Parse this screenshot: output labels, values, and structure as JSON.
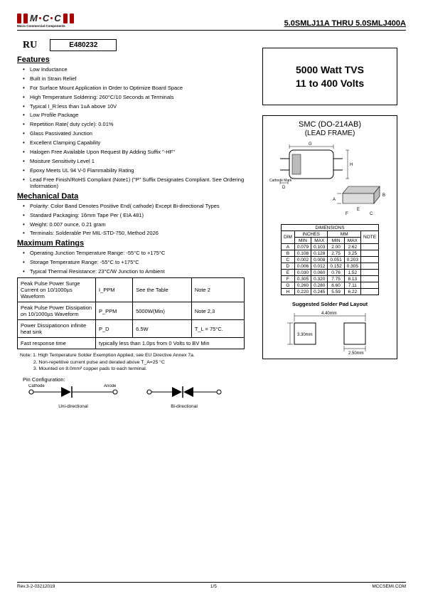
{
  "header": {
    "logo_sub": "Micro Commercial Components",
    "title": "5.0SMLJ11A THRU 5.0SMLJ400A"
  },
  "cert": {
    "ul_mark": "RU",
    "code": "E480232"
  },
  "sections": {
    "features_title": "Features",
    "mechanical_title": "Mechanical Data",
    "maxratings_title": "Maximum Ratings"
  },
  "features": [
    "Low Inductance",
    "Built in Strain Relief",
    "For Surface Mount Application in Order to Optimize Board Space",
    "High Temperature Soldering: 260°C/10 Seconds at Terminals",
    "Typical I_R:less than 1uA above 10V",
    "Low Profile Package",
    "Repetition Rate( duty cycle): 0.01%",
    "Glass Passivated Junction",
    "Excellent Clamping Capability",
    "Halogen Free Available Upon Request By Adding Suffix \"-HF\"",
    "Moisture Sensitivity Level 1",
    "Epoxy Meets UL 94 V-0 Flammability Rating",
    "Lead Free Finish/RoHS Compliant  (Note1) (\"P\" Suffix Designates Compliant. See Ordering Information)"
  ],
  "mechanical": [
    "Polarity: Color Band Denotes Positive End( cathode) Except Bi-directional Types",
    "Standard Packaging: 16mm Tape Per ( EIA 481)",
    "Weight: 0.007 ounce, 0.21 gram",
    "Terminals: Solderable Per MIL-STD-750, Method 2026"
  ],
  "maxratings": [
    "Operating Junction Temperature Range: -55°C to +175°C",
    "Storage Temperature Range: -55°C to +175°C",
    "Typical Thermal Resistance: 23°C/W Junction to Ambient"
  ],
  "ratings_table": {
    "rows": [
      {
        "p": "Peak Pulse Power Surge Current on 10/1000µs  Waveform",
        "s": "I_PPM",
        "v": "See the Table",
        "n": "Note 2"
      },
      {
        "p": "Peak Pulse Power Dissipation on 10/1000µs Waveform",
        "s": "P_PPM",
        "v": "5000W(Min)",
        "n": "Note 2,3"
      },
      {
        "p": "Power Dissipationon infinite heat sink",
        "s": "P_D",
        "v": "6.5W",
        "n": "T_L = 75°C."
      },
      {
        "p": "Fast response time",
        "s": "",
        "v": "typically less than 1.0ps from 0 Volts to BV Min",
        "n": ""
      }
    ]
  },
  "notes": {
    "label": "Note:",
    "lines": [
      "1. High Temperature Solder Exemption Applied, see EU Directive Annex 7a.",
      "2. Non-repetitive current pulse and derated above T_A=25 °C",
      "3. Mounted on 8.0mm² copper pads to each terminal."
    ]
  },
  "pin": {
    "title": "Pin Configuration:",
    "cathode": "Cathode",
    "anode": "Anode",
    "uni": "Uni-directional",
    "bi": "Bi-directional"
  },
  "topbox": {
    "l1": "5000 Watt TVS",
    "l2": "11 to 400 Volts"
  },
  "pkg": {
    "title": "SMC (DO-214AB)",
    "sub": "(LEAD FRAME)",
    "cathode_mark": "Cathode Mark"
  },
  "dim": {
    "header": "DIMENSIONS",
    "dim_label": "DIM",
    "inches": "INCHES",
    "mm": "MM",
    "note": "NOTE",
    "min": "MIN",
    "max": "MAX",
    "rows": [
      {
        "d": "A",
        "imin": "0.079",
        "imax": "0.103",
        "mmin": "2.00",
        "mmax": "2.62",
        "n": ""
      },
      {
        "d": "B",
        "imin": "0.108",
        "imax": "0.128",
        "mmin": "2.75",
        "mmax": "3.25",
        "n": ""
      },
      {
        "d": "C",
        "imin": "0.002",
        "imax": "0.008",
        "mmin": "0.051",
        "mmax": "0.203",
        "n": ""
      },
      {
        "d": "D",
        "imin": "0.006",
        "imax": "0.012",
        "mmin": "0.152",
        "mmax": "0.305",
        "n": ""
      },
      {
        "d": "E",
        "imin": "0.030",
        "imax": "0.060",
        "mmin": "0.76",
        "mmax": "1.52",
        "n": ""
      },
      {
        "d": "F",
        "imin": "0.305",
        "imax": "0.320",
        "mmin": "7.75",
        "mmax": "8.13",
        "n": ""
      },
      {
        "d": "G",
        "imin": "0.260",
        "imax": "0.280",
        "mmin": "6.60",
        "mmax": "7.11",
        "n": ""
      },
      {
        "d": "H",
        "imin": "0.220",
        "imax": "0.245",
        "mmin": "5.59",
        "mmax": "6.22",
        "n": ""
      }
    ]
  },
  "solder": {
    "title": "Suggested Solder Pad Layout",
    "w1": "4.40mm",
    "h1": "3.30mm",
    "w2": "2.50mm"
  },
  "footer": {
    "rev": "Rev.3-2-03212019",
    "page": "1/5",
    "site": "MCCSEMI.COM"
  },
  "colors": {
    "accent": "#a00000",
    "border": "#000000"
  }
}
